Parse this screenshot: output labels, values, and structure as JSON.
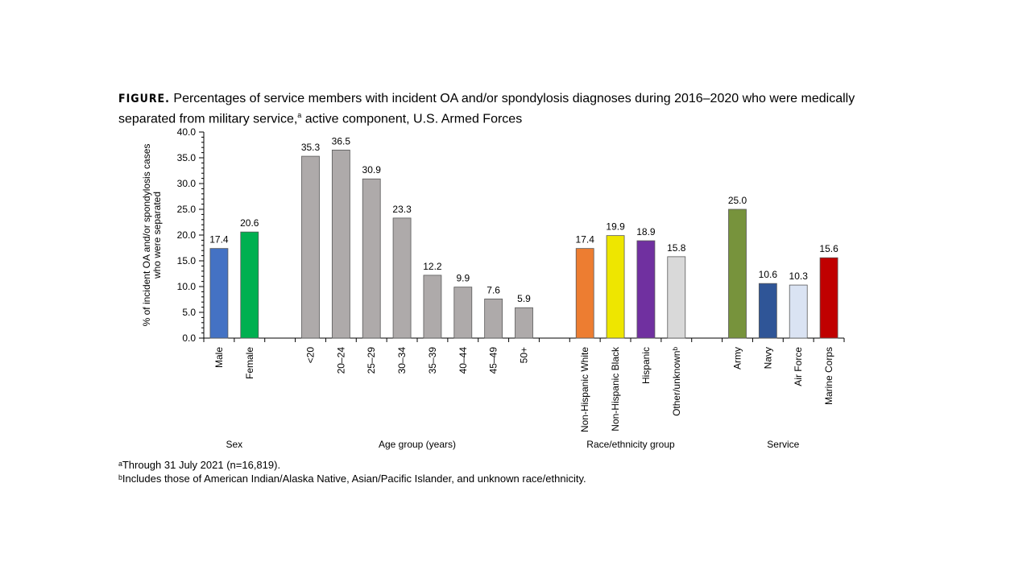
{
  "title": {
    "lead": "FIGURE.",
    "text": " Percentages of service members with incident OA and/or spondylosis diagnoses during 2016–2020 who were medically separated from military service,",
    "sup": "a",
    "text_end": " active component, U.S. Armed Forces"
  },
  "footnotes": [
    "ᵃThrough 31 July 2021 (n=16,819).",
    "ᵇIncludes those of American Indian/Alaska Native, Asian/Pacific Islander, and unknown race/ethnicity."
  ],
  "chart_data": {
    "type": "bar",
    "ylabel": [
      "% of incident OA and/or spondylosis cases",
      "who were separated"
    ],
    "ylim": [
      0,
      40
    ],
    "yticks": [
      "0.0",
      "5.0",
      "10.0",
      "15.0",
      "20.0",
      "25.0",
      "30.0",
      "35.0",
      "40.0"
    ],
    "grid": false,
    "groups": [
      {
        "name": "Sex",
        "categories": [
          "Male",
          "Female"
        ],
        "values": [
          17.4,
          20.6
        ],
        "colors": [
          "#4472C4",
          "#00B050"
        ]
      },
      {
        "name": "Age group (years)",
        "categories": [
          "<20",
          "20–24",
          "25–29",
          "30–34",
          "35–39",
          "40–44",
          "45–49",
          "50+"
        ],
        "values": [
          35.3,
          36.5,
          30.9,
          23.3,
          12.2,
          9.9,
          7.6,
          5.9
        ],
        "colors": [
          "#AEAAAA",
          "#AEAAAA",
          "#AEAAAA",
          "#AEAAAA",
          "#AEAAAA",
          "#AEAAAA",
          "#AEAAAA",
          "#AEAAAA"
        ]
      },
      {
        "name": "Race/ethnicity group",
        "categories": [
          "Non-Hispanic White",
          "Non-Hispanic Black",
          "Hispanic",
          "Other/unknownᵇ"
        ],
        "values": [
          17.4,
          19.9,
          18.9,
          15.8
        ],
        "colors": [
          "#ED7D31",
          "#EEE600",
          "#7030A0",
          "#D9D9D9"
        ]
      },
      {
        "name": "Service",
        "categories": [
          "Army",
          "Navy",
          "Air Force",
          "Marine Corps"
        ],
        "values": [
          25.0,
          10.6,
          10.3,
          15.6
        ],
        "colors": [
          "#77933C",
          "#2F5597",
          "#DAE3F3",
          "#C00000"
        ]
      }
    ]
  }
}
